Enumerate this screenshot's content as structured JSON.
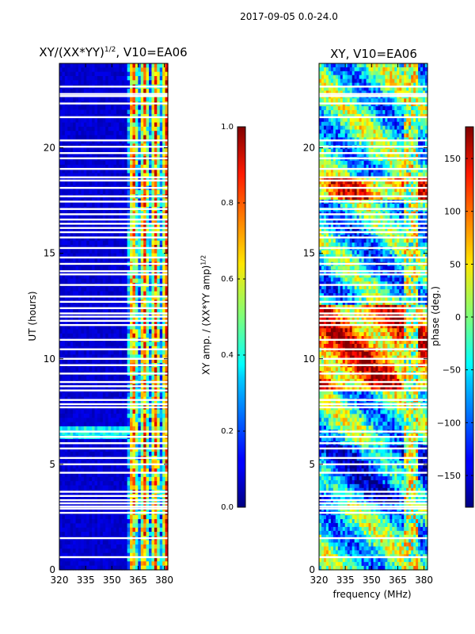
{
  "suptitle": "2017-09-05 0.0-24.0",
  "chart_data": [
    {
      "type": "heatmap",
      "title_base": "XY/(XX*YY)",
      "title_power": "1/2",
      "title_tail": ", V10=EA06",
      "xlabel": "",
      "ylabel": "UT (hours)",
      "xlim": [
        320,
        382
      ],
      "ylim": [
        0,
        24
      ],
      "xticks": [
        320,
        335,
        350,
        365,
        380
      ],
      "yticks": [
        0,
        5,
        10,
        15,
        20
      ],
      "colorbar": {
        "label_base": "XY amp. / (XX*YY amp)",
        "label_power": "1/2",
        "range": [
          0.0,
          1.0
        ],
        "ticks": [
          "0.0",
          "0.2",
          "0.4",
          "0.6",
          "0.8",
          "1.0"
        ],
        "tick_values": [
          0.0,
          0.2,
          0.4,
          0.6,
          0.8,
          1.0
        ]
      },
      "pattern": {
        "background_value": 0.08,
        "rfi_band_mhz": [
          360,
          382
        ],
        "horizontal_feature_ut": 6.5
      }
    },
    {
      "type": "heatmap",
      "title": "XY, V10=EA06",
      "xlabel": "frequency (MHz)",
      "ylabel": "",
      "xlim": [
        320,
        382
      ],
      "ylim": [
        0,
        24
      ],
      "xticks": [
        320,
        335,
        350,
        365,
        380
      ],
      "yticks": [
        0,
        5,
        10,
        15,
        20
      ],
      "colorbar": {
        "label": "phase (deg.)",
        "range": [
          -180,
          180
        ],
        "ticks": [
          "150",
          "100",
          "50",
          "0",
          "−50",
          "−100",
          "−150"
        ],
        "tick_values": [
          150,
          100,
          50,
          0,
          -50,
          -100,
          -150
        ]
      }
    }
  ],
  "flagged_ut_hours": [
    0.6,
    1.5,
    2.7,
    2.9,
    3.0,
    3.15,
    3.3,
    3.5,
    3.7,
    4.6,
    5.0,
    5.3,
    5.75,
    6.0,
    6.3,
    6.55,
    7.7,
    7.85,
    8.05,
    8.5,
    8.7,
    8.9,
    9.3,
    9.7,
    10.0,
    10.45,
    10.9,
    11.6,
    11.8,
    12.0,
    12.15,
    12.4,
    12.7,
    12.95,
    13.5,
    14.0,
    14.15,
    14.5,
    14.8,
    15.25,
    15.75,
    16.0,
    16.2,
    16.4,
    16.6,
    16.85,
    17.1,
    17.45,
    17.7,
    18.1,
    18.45,
    18.6,
    19.0,
    19.5,
    19.75,
    20.05,
    20.35,
    21.45,
    22.1,
    22.45,
    22.55,
    22.9
  ]
}
